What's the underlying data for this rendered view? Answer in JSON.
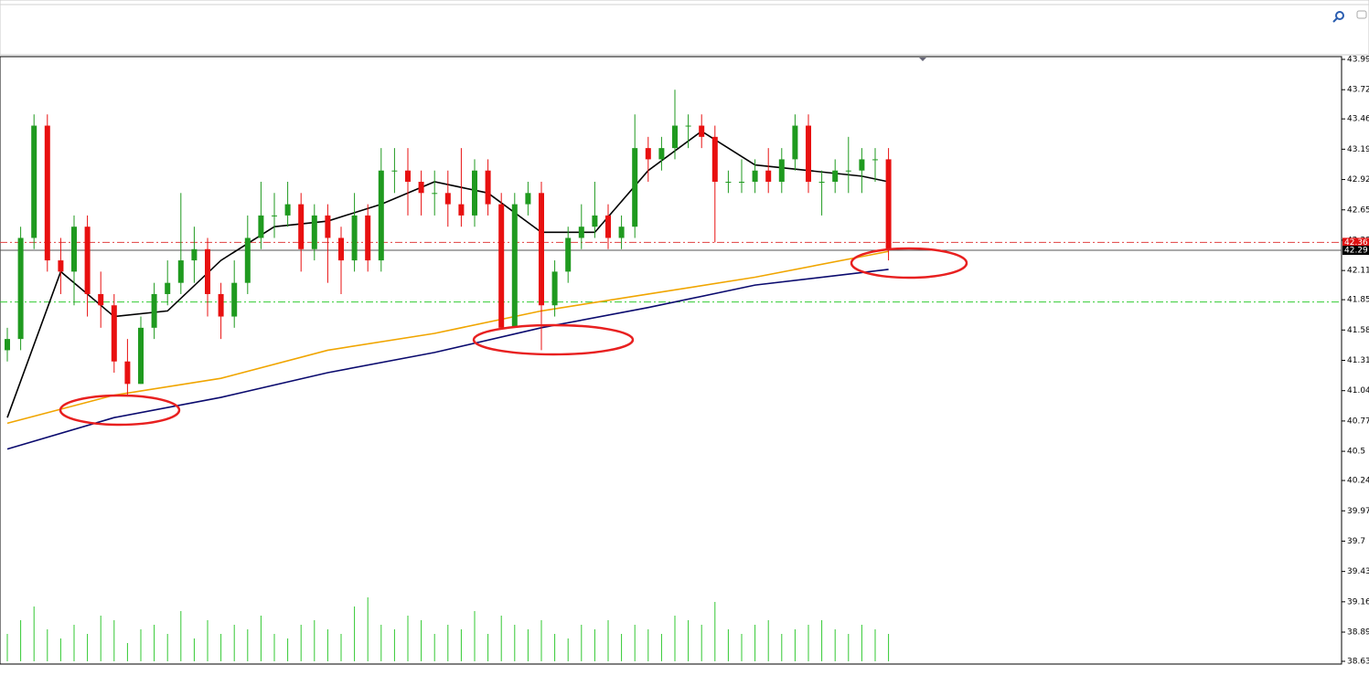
{
  "chart_data": {
    "type": "candlestick",
    "open": [
      41.4,
      41.5,
      42.4,
      43.4,
      42.2,
      42.1,
      42.5,
      41.9,
      41.8,
      41.3,
      41.1,
      41.6,
      41.9,
      42.0,
      42.2,
      42.3,
      41.9,
      41.7,
      42.0,
      42.4,
      42.6,
      42.6,
      42.7,
      42.3,
      42.6,
      42.4,
      42.2,
      42.6,
      42.2,
      43.0,
      43.0,
      42.9,
      42.8,
      42.8,
      42.7,
      42.6,
      43.0,
      42.7,
      41.6,
      42.7,
      42.8,
      41.8,
      42.1,
      42.4,
      42.5,
      42.6,
      42.4,
      42.5,
      43.2,
      43.1,
      43.2,
      43.4,
      43.4,
      43.3,
      42.9,
      42.9,
      42.9,
      43.0,
      42.9,
      43.1,
      43.4,
      42.9,
      42.9,
      43.0,
      43.0,
      43.1,
      43.1
    ],
    "high": [
      41.6,
      42.5,
      43.5,
      43.5,
      42.4,
      42.6,
      42.6,
      42.1,
      41.9,
      41.5,
      41.7,
      42.0,
      42.2,
      42.8,
      42.5,
      42.4,
      42.0,
      42.2,
      42.6,
      42.9,
      42.8,
      42.9,
      42.8,
      42.7,
      42.7,
      42.5,
      42.8,
      42.7,
      43.2,
      43.2,
      43.2,
      43.0,
      43.0,
      43.0,
      43.2,
      43.1,
      43.1,
      42.8,
      42.8,
      42.9,
      42.9,
      42.2,
      42.5,
      42.7,
      42.9,
      42.7,
      42.6,
      43.5,
      43.3,
      43.3,
      43.72,
      43.5,
      43.5,
      43.4,
      43.0,
      43.1,
      43.1,
      43.2,
      43.2,
      43.5,
      43.5,
      43.0,
      43.1,
      43.3,
      43.2,
      43.2,
      43.2
    ],
    "low": [
      41.3,
      41.4,
      42.3,
      42.1,
      41.9,
      41.8,
      41.7,
      41.6,
      41.2,
      41.0,
      41.1,
      41.5,
      41.8,
      41.9,
      42.0,
      41.7,
      41.5,
      41.6,
      41.9,
      42.3,
      42.4,
      42.5,
      42.1,
      42.2,
      42.0,
      41.9,
      42.1,
      42.1,
      42.1,
      42.8,
      42.6,
      42.6,
      42.6,
      42.5,
      42.5,
      42.5,
      42.6,
      41.6,
      41.6,
      42.6,
      41.4,
      41.7,
      42.0,
      42.3,
      42.4,
      42.3,
      42.3,
      42.4,
      42.9,
      43.0,
      43.1,
      43.2,
      43.2,
      42.36,
      42.8,
      42.8,
      42.8,
      42.8,
      42.8,
      43.0,
      42.8,
      42.6,
      42.8,
      42.8,
      42.8,
      42.9,
      42.2
    ],
    "close": [
      41.5,
      42.4,
      43.4,
      42.2,
      42.1,
      42.5,
      41.9,
      41.8,
      41.3,
      41.1,
      41.6,
      41.9,
      42.0,
      42.2,
      42.3,
      41.9,
      41.7,
      42.0,
      42.4,
      42.6,
      42.6,
      42.7,
      42.3,
      42.6,
      42.4,
      42.2,
      42.6,
      42.2,
      43.0,
      43.0,
      42.9,
      42.8,
      42.8,
      42.7,
      42.6,
      43.0,
      42.7,
      41.6,
      42.7,
      42.8,
      41.8,
      42.1,
      42.4,
      42.5,
      42.6,
      42.4,
      42.5,
      43.2,
      43.1,
      43.2,
      43.4,
      43.4,
      43.3,
      42.9,
      42.9,
      42.9,
      43.0,
      42.9,
      43.1,
      43.4,
      42.9,
      42.9,
      43.0,
      43.0,
      43.1,
      43.1,
      42.3
    ],
    "volume": [
      30,
      45,
      60,
      35,
      25,
      40,
      30,
      50,
      45,
      20,
      35,
      40,
      30,
      55,
      25,
      45,
      30,
      40,
      35,
      50,
      30,
      25,
      40,
      45,
      35,
      30,
      60,
      70,
      40,
      35,
      50,
      45,
      30,
      40,
      35,
      55,
      30,
      50,
      40,
      35,
      45,
      30,
      25,
      40,
      35,
      45,
      30,
      40,
      35,
      30,
      50,
      45,
      40,
      65,
      35,
      30,
      40,
      45,
      30,
      35,
      40,
      45,
      35,
      30,
      40,
      35,
      30
    ],
    "up_color": "#1f9a1f",
    "down_color": "#e81010",
    "volume_color": "#32c832",
    "series": [
      {
        "color": "#000000",
        "x": [
          0,
          4,
          8,
          12,
          16,
          20,
          24,
          28,
          32,
          36,
          40,
          44,
          48,
          52,
          56,
          60,
          64,
          66
        ],
        "values": [
          40.8,
          42.1,
          41.7,
          41.75,
          42.2,
          42.5,
          42.55,
          42.7,
          42.9,
          42.8,
          42.45,
          42.45,
          43.0,
          43.35,
          43.05,
          43.0,
          42.95,
          42.9
        ]
      },
      {
        "color": "#f0a500",
        "x": [
          0,
          8,
          16,
          24,
          32,
          40,
          48,
          56,
          66
        ],
        "values": [
          40.75,
          41.0,
          41.15,
          41.4,
          41.55,
          41.75,
          41.9,
          42.05,
          42.28
        ]
      },
      {
        "color": "#0a0a6e",
        "x": [
          0,
          8,
          16,
          24,
          32,
          40,
          48,
          56,
          66
        ],
        "values": [
          40.52,
          40.8,
          40.98,
          41.2,
          41.38,
          41.6,
          41.78,
          41.98,
          42.12
        ]
      }
    ],
    "levels": [
      {
        "value": 42.36,
        "color": "#e04040",
        "style": "dash-dot"
      },
      {
        "value": 42.29,
        "color": "#555555",
        "style": "solid"
      },
      {
        "value": 41.83,
        "color": "#33cc33",
        "style": "dash-dot"
      }
    ],
    "price_labels": [
      {
        "value": 42.36,
        "color": "#e01010"
      },
      {
        "value": 42.29,
        "color": "#000000"
      }
    ],
    "ylim": [
      38.63,
      43.99
    ],
    "yticks": [
      43.99,
      43.72,
      43.46,
      43.19,
      42.92,
      42.65,
      42.38,
      42.11,
      41.85,
      41.58,
      41.31,
      41.04,
      40.77,
      40.5,
      40.24,
      39.97,
      39.7,
      39.43,
      39.16,
      38.89,
      38.63
    ]
  }
}
